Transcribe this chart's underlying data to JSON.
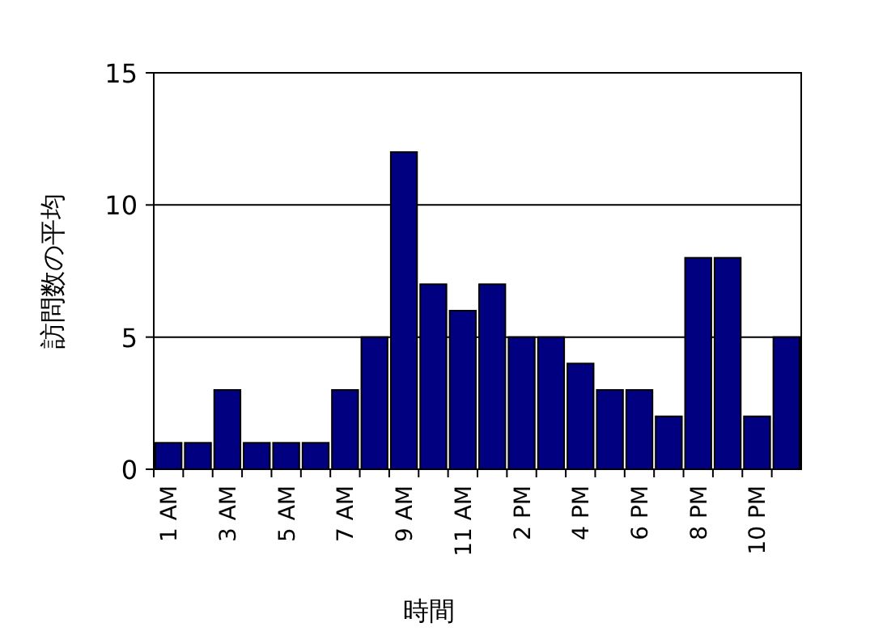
{
  "chart_data": {
    "type": "bar",
    "xlabel": "時間",
    "ylabel": "訪問数の平均",
    "categories": [
      "1 AM",
      null,
      "3 AM",
      null,
      "5 AM",
      null,
      "7 AM",
      null,
      "9 AM",
      null,
      "11 AM",
      null,
      "2 PM",
      null,
      "4 PM",
      null,
      "6 PM",
      null,
      "8 PM",
      null,
      "10 PM",
      null
    ],
    "values": [
      1,
      1,
      3,
      1,
      1,
      1,
      3,
      5,
      12,
      7,
      6,
      7,
      5,
      5,
      4,
      3,
      3,
      2,
      8,
      8,
      2,
      5
    ],
    "color": "#000080",
    "ylim": [
      0,
      15
    ],
    "yticks": [
      0,
      5,
      10,
      15
    ],
    "grid": "y"
  }
}
